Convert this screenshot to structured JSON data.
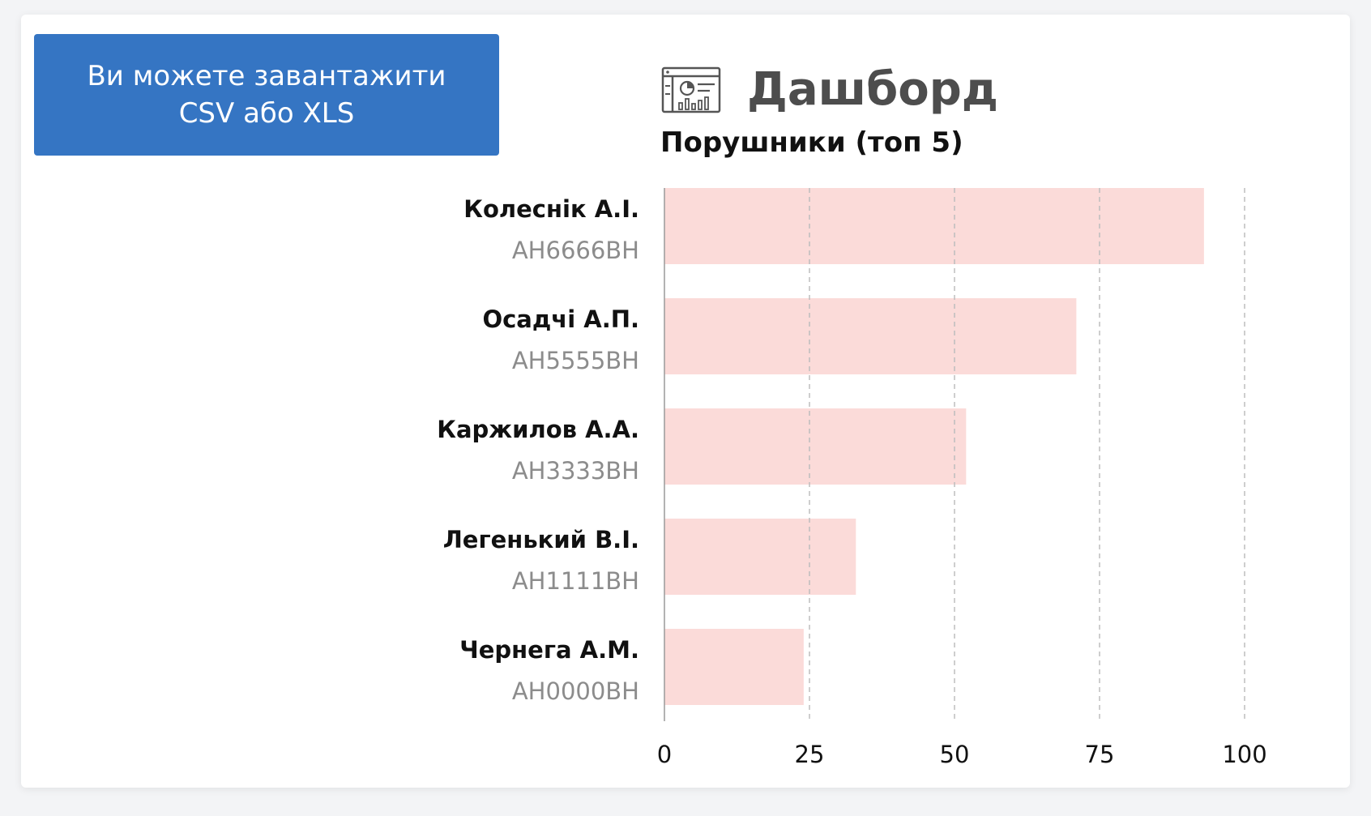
{
  "banner": {
    "text": "Ви можете завантажити CSV або XLS"
  },
  "dashboard": {
    "title": "Дашборд",
    "icon": "dashboard-icon"
  },
  "colors": {
    "banner": "#3575c3",
    "bar": "#fbdbd9",
    "grid": "#bdbdbd"
  },
  "chart_data": {
    "type": "bar",
    "orientation": "horizontal",
    "title": "Порушники (топ 5)",
    "categories": [
      {
        "name": "Колеснік А.І.",
        "plate": "АН6666ВН"
      },
      {
        "name": "Осадчі А.П.",
        "plate": "АН5555ВН"
      },
      {
        "name": "Каржилов А.А.",
        "plate": "АН3333ВН"
      },
      {
        "name": "Легенький В.І.",
        "plate": "АН1111ВН"
      },
      {
        "name": "Чернега А.М.",
        "plate": "АН0000ВН"
      }
    ],
    "values": [
      93,
      71,
      52,
      33,
      24
    ],
    "xlim": [
      0,
      100
    ],
    "xticks": [
      0,
      25,
      50,
      75,
      100
    ],
    "grid": "vertical-dashed",
    "legend": "none"
  }
}
